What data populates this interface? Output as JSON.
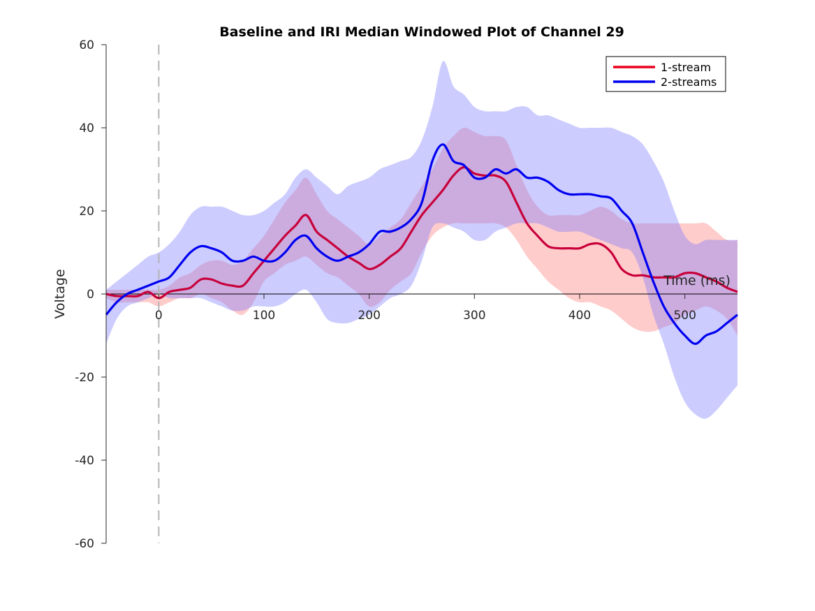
{
  "chart_data": {
    "type": "line",
    "title": "Baseline and IRI Median Windowed Plot of Channel 29",
    "xlabel": "Time (ms)",
    "ylabel": "Voltage",
    "xlim": [
      -50,
      550
    ],
    "ylim": [
      -60,
      60
    ],
    "xticks": [
      0,
      100,
      200,
      300,
      400,
      500
    ],
    "yticks": [
      -60,
      -40,
      -20,
      0,
      20,
      40,
      60
    ],
    "stimulus_line_x": 0,
    "legend_position": "top-right",
    "colors": {
      "series_1": "#e8001c",
      "series_2": "#0000f0",
      "band_1": "rgba(255,120,120,0.38)",
      "band_2": "rgba(120,120,255,0.38)",
      "overlap_mean_line": "#c8003a",
      "dashed": "#b5b5b5"
    },
    "series": [
      {
        "name": "1-stream",
        "x": [
          -50,
          -40,
          -30,
          -20,
          -10,
          0,
          10,
          20,
          30,
          40,
          50,
          60,
          70,
          80,
          90,
          100,
          110,
          120,
          130,
          140,
          150,
          160,
          170,
          180,
          190,
          200,
          210,
          220,
          230,
          240,
          250,
          260,
          270,
          280,
          290,
          300,
          310,
          320,
          330,
          340,
          350,
          360,
          370,
          380,
          390,
          400,
          410,
          420,
          430,
          440,
          450,
          460,
          470,
          480,
          490,
          500,
          510,
          520,
          530,
          540,
          550
        ],
        "y": [
          0,
          -0.5,
          -0.5,
          -0.5,
          0.5,
          -1,
          0.5,
          1,
          1.5,
          3.5,
          3.5,
          2.5,
          2,
          2,
          5,
          8,
          11,
          14,
          16.5,
          19,
          15,
          13,
          11,
          9,
          7.5,
          6,
          7,
          9,
          11,
          15,
          19,
          22,
          25,
          28.5,
          30.5,
          29,
          28.5,
          28.5,
          27,
          22,
          17,
          14,
          11.5,
          11,
          11,
          11,
          12,
          12,
          10,
          6,
          4.5,
          4.5,
          4,
          4,
          4,
          5,
          5,
          4,
          3,
          1.5,
          0.5
        ],
        "lower": [
          -1,
          -2,
          -2,
          -2,
          -2,
          -3,
          -2,
          -1,
          -1,
          0,
          -1,
          -2,
          -4,
          -5,
          -2,
          3,
          5,
          7,
          8,
          9,
          7,
          5,
          4,
          2,
          0,
          -3,
          -2,
          1,
          3,
          5,
          10,
          14,
          16,
          17,
          17,
          17,
          17,
          17,
          16,
          13,
          9,
          6,
          3,
          1,
          -1,
          -2,
          -2,
          -3,
          -4,
          -6,
          -8,
          -9,
          -9,
          -8,
          -7,
          -5,
          -4,
          -3,
          -4,
          -6,
          -10
        ],
        "upper": [
          1,
          1,
          1,
          1,
          1,
          1,
          2,
          4,
          5,
          7,
          8,
          8,
          7,
          8,
          11,
          14,
          18,
          22,
          25,
          28,
          24,
          20,
          18,
          16,
          14,
          12,
          14,
          16,
          18,
          22,
          26,
          30,
          35,
          38,
          40,
          39,
          38,
          38,
          37,
          31,
          25,
          21,
          19,
          19,
          19,
          19,
          20,
          21,
          20,
          18,
          17,
          17,
          17,
          17,
          17,
          17,
          17,
          17,
          15,
          13,
          13
        ]
      },
      {
        "name": "2-streams",
        "x": [
          -50,
          -40,
          -30,
          -20,
          -10,
          0,
          10,
          20,
          30,
          40,
          50,
          60,
          70,
          80,
          90,
          100,
          110,
          120,
          130,
          140,
          150,
          160,
          170,
          180,
          190,
          200,
          210,
          220,
          230,
          240,
          250,
          260,
          270,
          280,
          290,
          300,
          310,
          320,
          330,
          340,
          350,
          360,
          370,
          380,
          390,
          400,
          410,
          420,
          430,
          440,
          450,
          460,
          470,
          480,
          490,
          500,
          510,
          520,
          530,
          540,
          550
        ],
        "y": [
          -5,
          -2,
          0,
          1,
          2,
          3,
          4,
          7,
          10,
          11.5,
          11,
          10,
          8,
          8,
          9,
          8,
          8,
          10,
          13,
          14,
          11,
          9,
          8,
          9,
          10,
          12,
          15,
          15,
          16,
          18,
          22,
          32,
          36,
          32,
          31,
          28,
          28,
          30,
          29,
          30,
          28,
          28,
          27,
          25,
          24,
          24,
          24,
          23.5,
          23,
          20,
          17,
          10,
          3,
          -3,
          -7,
          -10,
          -12,
          -10,
          -9,
          -7,
          -5
        ],
        "lower": [
          -12,
          -6,
          -3,
          -2,
          -1,
          0,
          -1,
          -1,
          -1,
          -1,
          -2,
          -3,
          -4,
          -4,
          -3,
          -3,
          -3,
          -2,
          0,
          1,
          -2,
          -6,
          -7,
          -7,
          -6,
          -5,
          -3,
          -1,
          0,
          2,
          8,
          16,
          17,
          16,
          15,
          13,
          13,
          15,
          16,
          17,
          17,
          17,
          16,
          15,
          15,
          15,
          14,
          13,
          12,
          11,
          10,
          4,
          -5,
          -12,
          -20,
          -26,
          -29,
          -30,
          -28,
          -25,
          -22
        ],
        "upper": [
          1,
          3,
          5,
          7,
          9,
          10,
          12,
          15,
          19,
          21,
          21,
          21,
          20,
          19,
          19,
          20,
          22,
          24,
          28,
          30,
          28,
          26,
          24,
          26,
          27,
          28,
          30,
          31,
          32,
          33,
          37,
          45,
          56,
          50,
          48,
          45,
          44,
          44,
          44,
          45,
          45,
          43,
          43,
          42,
          41,
          40,
          40,
          40,
          40,
          39,
          38,
          36,
          32,
          27,
          20,
          14,
          12,
          13,
          13,
          13,
          13
        ]
      }
    ]
  }
}
